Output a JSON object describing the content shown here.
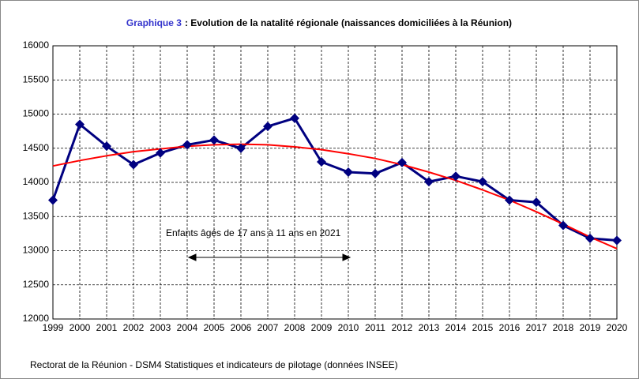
{
  "chart_data": {
    "type": "line",
    "title_label": "Graphique 3",
    "title": ": Evolution de la natalité régionale (naissances domiciliées à la Réunion)",
    "categories": [
      "1999",
      "2000",
      "2001",
      "2002",
      "2003",
      "2004",
      "2005",
      "2006",
      "2007",
      "2008",
      "2009",
      "2010",
      "2011",
      "2012",
      "2013",
      "2014",
      "2015",
      "2016",
      "2017",
      "2018",
      "2019",
      "2020"
    ],
    "series": [
      {
        "color": "#000080",
        "marker": "diamond",
        "values": [
          13740,
          14850,
          14530,
          14260,
          14430,
          14550,
          14620,
          14500,
          14820,
          14940,
          14300,
          14150,
          14130,
          14290,
          14010,
          14090,
          14010,
          13740,
          13710,
          13370,
          13180,
          13150
        ]
      },
      {
        "color": "#ff0000",
        "marker": "none",
        "values": [
          14240,
          14320,
          14390,
          14450,
          14490,
          14530,
          14550,
          14560,
          14550,
          14520,
          14480,
          14420,
          14350,
          14260,
          14150,
          14030,
          13890,
          13740,
          13570,
          13390,
          13200,
          13030
        ]
      }
    ],
    "ylim": [
      12000,
      16000
    ],
    "yticks": [
      12000,
      12500,
      13000,
      13500,
      14000,
      14500,
      15000,
      15500,
      16000
    ],
    "grid": true,
    "annotation": "Enfants âgés de 17 ans à 11 ans en 2021",
    "source": "Rectorat de la Réunion - DSM4 Statistiques et indicateurs de pilotage (données INSEE)"
  }
}
